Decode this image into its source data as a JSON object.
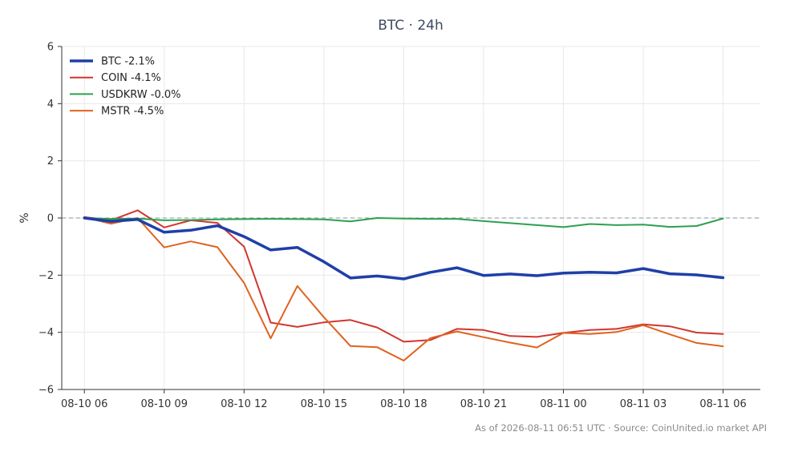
{
  "chart_data": {
    "type": "line",
    "title": "BTC · 24h",
    "ylabel": "%",
    "ylim": [
      -6,
      6
    ],
    "yticks": [
      -6,
      -4,
      -2,
      0,
      2,
      4,
      6
    ],
    "ytick_labels": [
      "−6",
      "−4",
      "−2",
      "0",
      "2",
      "4",
      "6"
    ],
    "xlim": [
      -0.85,
      25.4
    ],
    "xticks": [
      0,
      3,
      6,
      9,
      12,
      15,
      18,
      21,
      24
    ],
    "xtick_labels": [
      "08-10 06",
      "08-10 09",
      "08-10 12",
      "08-10 15",
      "08-10 18",
      "08-10 21",
      "08-11 00",
      "08-11 03",
      "08-11 06"
    ],
    "x": [
      0,
      1,
      2,
      3,
      4,
      5,
      6,
      7,
      8,
      9,
      10,
      11,
      12,
      13,
      14,
      15,
      16,
      17,
      18,
      19,
      20,
      21,
      22,
      23,
      24
    ],
    "grid": true,
    "zero_line": true,
    "legend_position": "top-left",
    "series": [
      {
        "name": "BTC -2.1%",
        "color": "#1f3fa8",
        "width": 3.5,
        "values": [
          0.0,
          -0.12,
          -0.05,
          -0.5,
          -0.43,
          -0.27,
          -0.65,
          -1.12,
          -1.03,
          -1.53,
          -2.1,
          -2.03,
          -2.13,
          -1.9,
          -1.74,
          -2.01,
          -1.96,
          -2.02,
          -1.93,
          -1.9,
          -1.92,
          -1.77,
          -1.95,
          -1.99,
          -2.09
        ]
      },
      {
        "name": "COIN -4.1%",
        "color": "#d1362f",
        "width": 2,
        "values": [
          0.03,
          -0.08,
          0.27,
          -0.33,
          -0.08,
          -0.17,
          -1.0,
          -3.66,
          -3.81,
          -3.65,
          -3.57,
          -3.83,
          -4.33,
          -4.27,
          -3.88,
          -3.92,
          -4.13,
          -4.16,
          -4.02,
          -3.92,
          -3.88,
          -3.72,
          -3.79,
          -4.01,
          -4.06
        ]
      },
      {
        "name": "USDKRW -0.0%",
        "color": "#2ca14d",
        "width": 2,
        "values": [
          0.0,
          -0.03,
          -0.02,
          -0.08,
          -0.07,
          -0.05,
          -0.04,
          -0.03,
          -0.04,
          -0.05,
          -0.12,
          0.0,
          -0.02,
          -0.03,
          -0.03,
          -0.11,
          -0.18,
          -0.25,
          -0.32,
          -0.21,
          -0.25,
          -0.23,
          -0.31,
          -0.28,
          -0.02
        ]
      },
      {
        "name": "MSTR -4.5%",
        "color": "#e0621e",
        "width": 2,
        "values": [
          0.02,
          -0.2,
          0.0,
          -1.03,
          -0.82,
          -1.02,
          -2.27,
          -4.21,
          -2.38,
          -3.47,
          -4.48,
          -4.52,
          -4.99,
          -4.2,
          -3.97,
          -4.17,
          -4.36,
          -4.53,
          -4.02,
          -4.06,
          -3.99,
          -3.75,
          -4.07,
          -4.37,
          -4.49
        ]
      }
    ]
  },
  "caption": "As of 2026-08-11 06:51 UTC · Source: CoinUnited.io market API"
}
